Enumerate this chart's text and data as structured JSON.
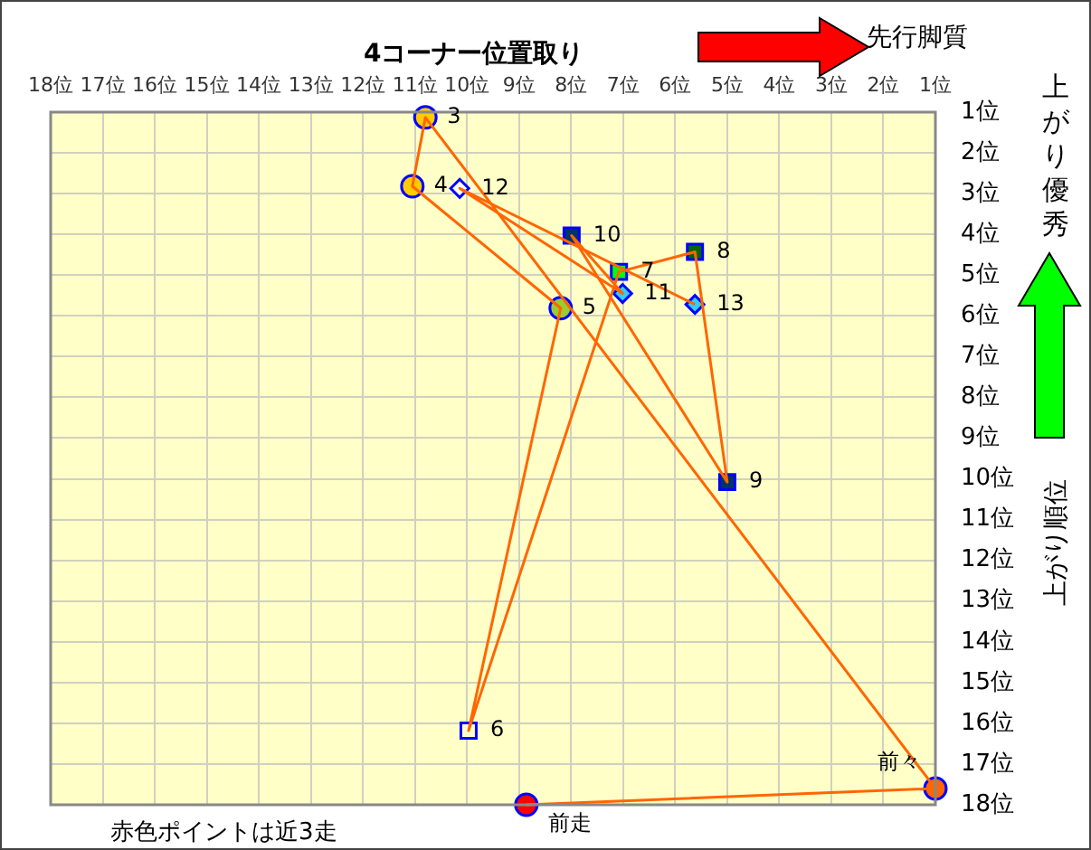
{
  "chart_data": {
    "type": "scatter",
    "title": "4コーナー位置取り",
    "ylabel": "上がり順位",
    "xlim": [
      18,
      1
    ],
    "ylim": [
      18,
      1
    ],
    "xticks": [
      {
        "value": 18,
        "label": "18位"
      },
      {
        "value": 17,
        "label": "17位"
      },
      {
        "value": 16,
        "label": "16位"
      },
      {
        "value": 15,
        "label": "15位"
      },
      {
        "value": 14,
        "label": "14位"
      },
      {
        "value": 13,
        "label": "13位"
      },
      {
        "value": 12,
        "label": "12位"
      },
      {
        "value": 11,
        "label": "11位"
      },
      {
        "value": 10,
        "label": "10位"
      },
      {
        "value": 9,
        "label": "9位"
      },
      {
        "value": 8,
        "label": "8位"
      },
      {
        "value": 7,
        "label": "7位"
      },
      {
        "value": 6,
        "label": "6位"
      },
      {
        "value": 5,
        "label": "5位"
      },
      {
        "value": 4,
        "label": "4位"
      },
      {
        "value": 3,
        "label": "3位"
      },
      {
        "value": 2,
        "label": "2位"
      },
      {
        "value": 1,
        "label": "1位"
      }
    ],
    "yticks": [
      {
        "value": 1,
        "label": "1位"
      },
      {
        "value": 2,
        "label": "2位"
      },
      {
        "value": 3,
        "label": "3位"
      },
      {
        "value": 4,
        "label": "4位"
      },
      {
        "value": 5,
        "label": "5位"
      },
      {
        "value": 6,
        "label": "6位"
      },
      {
        "value": 7,
        "label": "7位"
      },
      {
        "value": 8,
        "label": "8位"
      },
      {
        "value": 9,
        "label": "9位"
      },
      {
        "value": 10,
        "label": "10位"
      },
      {
        "value": 11,
        "label": "11位"
      },
      {
        "value": 12,
        "label": "12位"
      },
      {
        "value": 13,
        "label": "13位"
      },
      {
        "value": 14,
        "label": "14位"
      },
      {
        "value": 15,
        "label": "15位"
      },
      {
        "value": 16,
        "label": "16位"
      },
      {
        "value": 17,
        "label": "17位"
      },
      {
        "value": 18,
        "label": "18位"
      }
    ],
    "grid": true,
    "legend": false,
    "series": [
      {
        "type": "line",
        "color": "#ff6600",
        "marker": "none",
        "x": [
          8.86,
          1.0,
          10.8,
          11.05,
          8.2,
          9.97,
          7.08,
          5.62,
          5.0,
          7.99,
          7.01,
          10.14,
          5.62
        ],
        "values": [
          18,
          17.6,
          1.13,
          2.82,
          5.81,
          16.18,
          4.92,
          4.43,
          10.08,
          4.03,
          5.45,
          2.87,
          5.72
        ]
      },
      {
        "type": "scatter",
        "marker": "circle",
        "x": [
          8.86,
          1.0,
          10.8,
          11.05,
          8.2
        ],
        "values": [
          18,
          17.6,
          1.13,
          2.82,
          5.81
        ],
        "colors": [
          "#ff0000",
          "#ff6600",
          "#ffcc00",
          "#ffcc00",
          "#99cc33"
        ]
      },
      {
        "type": "scatter",
        "marker": "square",
        "x": [
          9.97,
          7.08,
          5.62,
          5.0,
          7.99
        ],
        "values": [
          16.18,
          4.92,
          4.43,
          10.08,
          4.03
        ],
        "colors": [
          "#ffffcc",
          "#00ff00",
          "#006600",
          "#003366",
          "#003366"
        ]
      },
      {
        "type": "scatter",
        "marker": "diamond",
        "x": [
          7.01,
          10.14,
          5.62
        ],
        "values": [
          5.45,
          2.87,
          5.72
        ],
        "colors": [
          "#33ccff",
          "#ffffff",
          "#33ccff"
        ]
      }
    ],
    "annotations": [
      "先行脚質",
      "上がり優秀",
      "赤色ポイントは近3走",
      {
        "text": "前走",
        "x": 8.86,
        "y": 18
      },
      {
        "text": "前々",
        "x": 1.0,
        "y": 17.6
      },
      {
        "text": "3",
        "x": 10.8,
        "y": 1.13
      },
      {
        "text": "4",
        "x": 11.05,
        "y": 2.82
      },
      {
        "text": "5",
        "x": 8.2,
        "y": 5.81
      },
      {
        "text": "6",
        "x": 9.97,
        "y": 16.18
      },
      {
        "text": "7",
        "x": 7.08,
        "y": 4.92
      },
      {
        "text": "8",
        "x": 5.62,
        "y": 4.43
      },
      {
        "text": "9",
        "x": 5.0,
        "y": 10.08
      },
      {
        "text": "10",
        "x": 7.99,
        "y": 4.03
      },
      {
        "text": "11",
        "x": 7.01,
        "y": 5.45
      },
      {
        "text": "12",
        "x": 10.14,
        "y": 2.87
      },
      {
        "text": "13",
        "x": 5.62,
        "y": 5.72
      }
    ]
  }
}
